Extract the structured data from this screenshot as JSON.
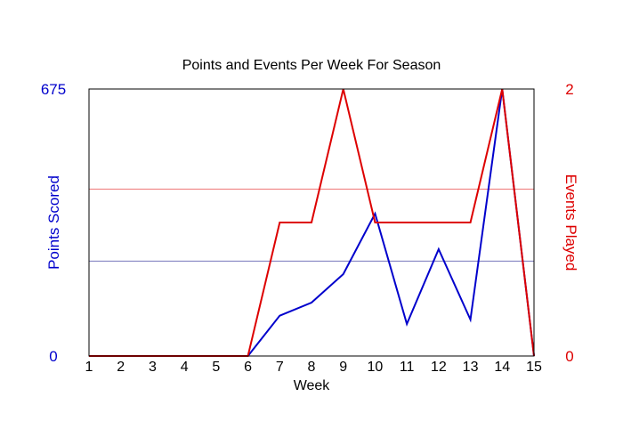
{
  "chart_data": {
    "type": "line",
    "title": "Points and Events Per Week For Season",
    "xlabel": "Week",
    "ylabel_left": "Points Scored",
    "ylabel_right": "Events Played",
    "x": [
      1,
      2,
      3,
      4,
      5,
      6,
      7,
      8,
      9,
      10,
      11,
      12,
      13,
      14,
      15
    ],
    "x_ticks": [
      "1",
      "2",
      "3",
      "4",
      "5",
      "6",
      "7",
      "8",
      "9",
      "10",
      "11",
      "12",
      "13",
      "14",
      "15"
    ],
    "y_left_ticks": [
      "0",
      "675"
    ],
    "y_right_ticks": [
      "0",
      "2"
    ],
    "ylim_left": [
      0,
      675
    ],
    "ylim_right": [
      0,
      2
    ],
    "series": [
      {
        "axis": "left",
        "color": "#0000cc",
        "values": [
          0,
          0,
          0,
          0,
          0,
          0,
          102,
          135,
          207,
          360,
          81,
          270,
          92,
          675,
          0
        ]
      },
      {
        "axis": "right",
        "color": "#dd0000",
        "values": [
          0,
          0,
          0,
          0,
          0,
          0,
          1,
          1,
          2,
          1,
          1,
          1,
          1,
          2,
          0
        ]
      }
    ],
    "reference_lines": [
      {
        "axis": "left",
        "value": 240,
        "color": "#7777bb"
      },
      {
        "axis": "right",
        "value": 1.25,
        "color": "#ee7777"
      }
    ],
    "grid": false,
    "colors": {
      "left_axis_text": "#0000cc",
      "right_axis_text": "#dd0000"
    }
  }
}
